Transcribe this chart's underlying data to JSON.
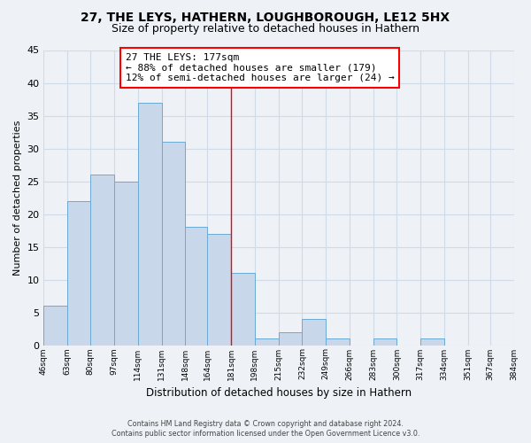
{
  "title1": "27, THE LEYS, HATHERN, LOUGHBOROUGH, LE12 5HX",
  "title2": "Size of property relative to detached houses in Hathern",
  "xlabel": "Distribution of detached houses by size in Hathern",
  "ylabel": "Number of detached properties",
  "bin_edges": [
    46,
    63,
    80,
    97,
    114,
    131,
    148,
    164,
    181,
    198,
    215,
    232,
    249,
    266,
    283,
    300,
    317,
    334,
    351,
    367,
    384
  ],
  "bin_labels": [
    "46sqm",
    "63sqm",
    "80sqm",
    "97sqm",
    "114sqm",
    "131sqm",
    "148sqm",
    "164sqm",
    "181sqm",
    "198sqm",
    "215sqm",
    "232sqm",
    "249sqm",
    "266sqm",
    "283sqm",
    "300sqm",
    "317sqm",
    "334sqm",
    "351sqm",
    "367sqm",
    "384sqm"
  ],
  "counts": [
    6,
    22,
    26,
    25,
    37,
    31,
    18,
    17,
    11,
    1,
    2,
    4,
    1,
    0,
    1,
    0,
    1,
    0,
    0,
    0
  ],
  "bar_color": "#c8d8ea",
  "bar_edgecolor": "#6aaad4",
  "vline_x": 181,
  "annotation_text_line1": "27 THE LEYS: 177sqm",
  "annotation_text_line2": "← 88% of detached houses are smaller (179)",
  "annotation_text_line3": "12% of semi-detached houses are larger (24) →",
  "ylim": [
    0,
    45
  ],
  "yticks": [
    0,
    5,
    10,
    15,
    20,
    25,
    30,
    35,
    40,
    45
  ],
  "footer1": "Contains HM Land Registry data © Crown copyright and database right 2024.",
  "footer2": "Contains public sector information licensed under the Open Government Licence v3.0.",
  "background_color": "#eef2f7",
  "grid_color": "#d0dae8",
  "title_fontsize": 10,
  "subtitle_fontsize": 9
}
